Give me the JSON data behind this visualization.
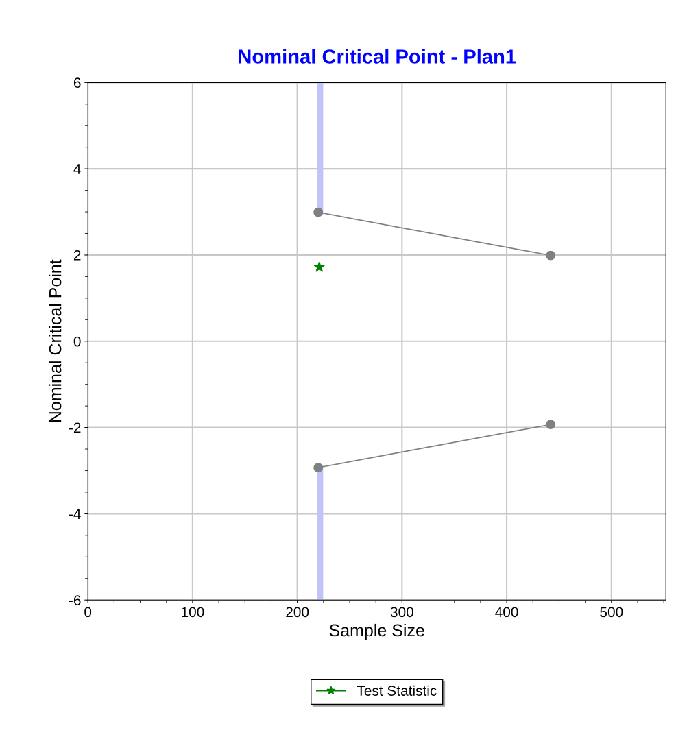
{
  "chart_data": {
    "type": "line",
    "title": "Nominal Critical Point - Plan1",
    "xlabel": "Sample Size",
    "ylabel": "Nominal Critical Point",
    "series": [
      {
        "color": "#c0c4f8",
        "x": [
          222,
          222
        ],
        "values": [
          6,
          2.99
        ],
        "marker": "none",
        "line_style": "solid"
      },
      {
        "color": "#c0c4f8",
        "x": [
          222,
          222
        ],
        "values": [
          -2.93,
          -6
        ],
        "marker": "none",
        "line_style": "solid"
      },
      {
        "color": "#808080",
        "x": [
          220,
          442
        ],
        "values": [
          2.99,
          1.99
        ],
        "marker": "circle",
        "line_style": "solid"
      },
      {
        "color": "#808080",
        "x": [
          220,
          442
        ],
        "values": [
          -2.93,
          -1.93
        ],
        "marker": "circle",
        "line_style": "solid"
      },
      {
        "type": "scatter",
        "name": "Test Statistic",
        "color": "#008000",
        "x": [
          221
        ],
        "values": [
          1.72
        ],
        "marker": "star"
      }
    ],
    "xlim": [
      0,
      552
    ],
    "xticks": [
      0,
      100,
      200,
      300,
      400,
      500
    ],
    "ylim": [
      -6,
      6
    ],
    "yticks": [
      -6,
      -4,
      -2,
      0,
      2,
      4,
      6
    ],
    "grid": true,
    "legend": "bottom"
  }
}
